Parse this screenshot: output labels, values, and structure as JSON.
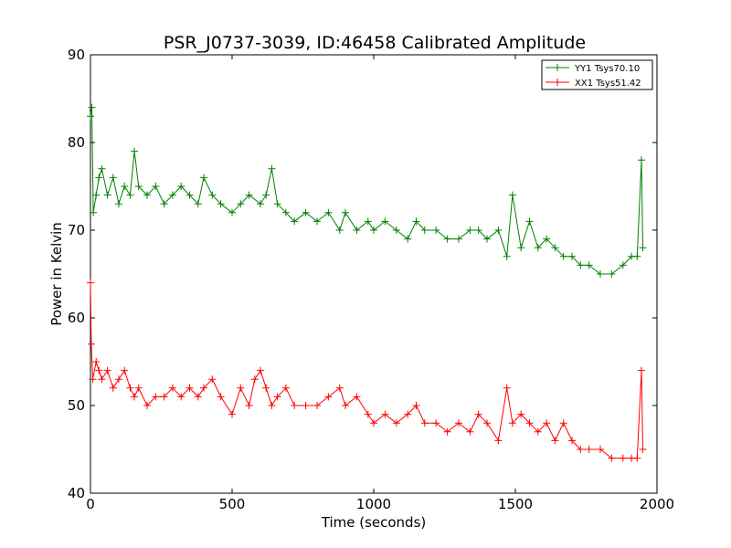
{
  "chart_data": {
    "type": "line",
    "title": "PSR_J0737-3039, ID:46458 Calibrated Amplitude",
    "xlabel": "Time (seconds)",
    "ylabel": "Power in Kelvin",
    "xlim": [
      0,
      2000
    ],
    "ylim": [
      40,
      90
    ],
    "xticks": [
      "0",
      "500",
      "1000",
      "1500",
      "2000"
    ],
    "yticks": [
      "40",
      "50",
      "60",
      "70",
      "80",
      "90"
    ],
    "grid": false,
    "legend_position": "top-right",
    "marker": "+",
    "series": [
      {
        "name": "YY1 Tsys70.10",
        "color": "#008000",
        "x": [
          0,
          5,
          10,
          20,
          30,
          40,
          60,
          80,
          100,
          120,
          140,
          155,
          170,
          200,
          230,
          260,
          290,
          320,
          350,
          380,
          400,
          430,
          460,
          500,
          530,
          560,
          600,
          620,
          640,
          660,
          690,
          720,
          760,
          800,
          840,
          880,
          900,
          940,
          980,
          1000,
          1040,
          1080,
          1120,
          1150,
          1180,
          1220,
          1260,
          1300,
          1340,
          1370,
          1400,
          1440,
          1470,
          1490,
          1520,
          1550,
          1580,
          1610,
          1640,
          1670,
          1700,
          1730,
          1760,
          1800,
          1840,
          1880,
          1910,
          1930,
          1945,
          1950
        ],
        "y": [
          83,
          84,
          72,
          74,
          76,
          77,
          74,
          76,
          73,
          75,
          74,
          79,
          75,
          74,
          75,
          73,
          74,
          75,
          74,
          73,
          76,
          74,
          73,
          72,
          73,
          74,
          73,
          74,
          77,
          73,
          72,
          71,
          72,
          71,
          72,
          70,
          72,
          70,
          71,
          70,
          71,
          70,
          69,
          71,
          70,
          70,
          69,
          69,
          70,
          70,
          69,
          70,
          67,
          74,
          68,
          71,
          68,
          69,
          68,
          67,
          67,
          66,
          66,
          65,
          65,
          66,
          67,
          67,
          78,
          68
        ]
      },
      {
        "name": "XX1 Tsys51.42",
        "color": "#ff0000",
        "x": [
          0,
          3,
          8,
          20,
          30,
          40,
          60,
          80,
          100,
          120,
          140,
          155,
          170,
          200,
          230,
          260,
          290,
          320,
          350,
          380,
          400,
          430,
          460,
          500,
          530,
          560,
          580,
          600,
          620,
          640,
          660,
          690,
          720,
          760,
          800,
          840,
          880,
          900,
          940,
          980,
          1000,
          1040,
          1080,
          1120,
          1150,
          1180,
          1220,
          1260,
          1300,
          1340,
          1370,
          1400,
          1440,
          1470,
          1490,
          1520,
          1550,
          1580,
          1610,
          1640,
          1670,
          1700,
          1730,
          1760,
          1800,
          1840,
          1880,
          1910,
          1930,
          1945,
          1950
        ],
        "y": [
          64,
          57,
          53,
          55,
          54,
          53,
          54,
          52,
          53,
          54,
          52,
          51,
          52,
          50,
          51,
          51,
          52,
          51,
          52,
          51,
          52,
          53,
          51,
          49,
          52,
          50,
          53,
          54,
          52,
          50,
          51,
          52,
          50,
          50,
          50,
          51,
          52,
          50,
          51,
          49,
          48,
          49,
          48,
          49,
          50,
          48,
          48,
          47,
          48,
          47,
          49,
          48,
          46,
          52,
          48,
          49,
          48,
          47,
          48,
          46,
          48,
          46,
          45,
          45,
          45,
          44,
          44,
          44,
          44,
          54,
          45
        ]
      }
    ]
  }
}
